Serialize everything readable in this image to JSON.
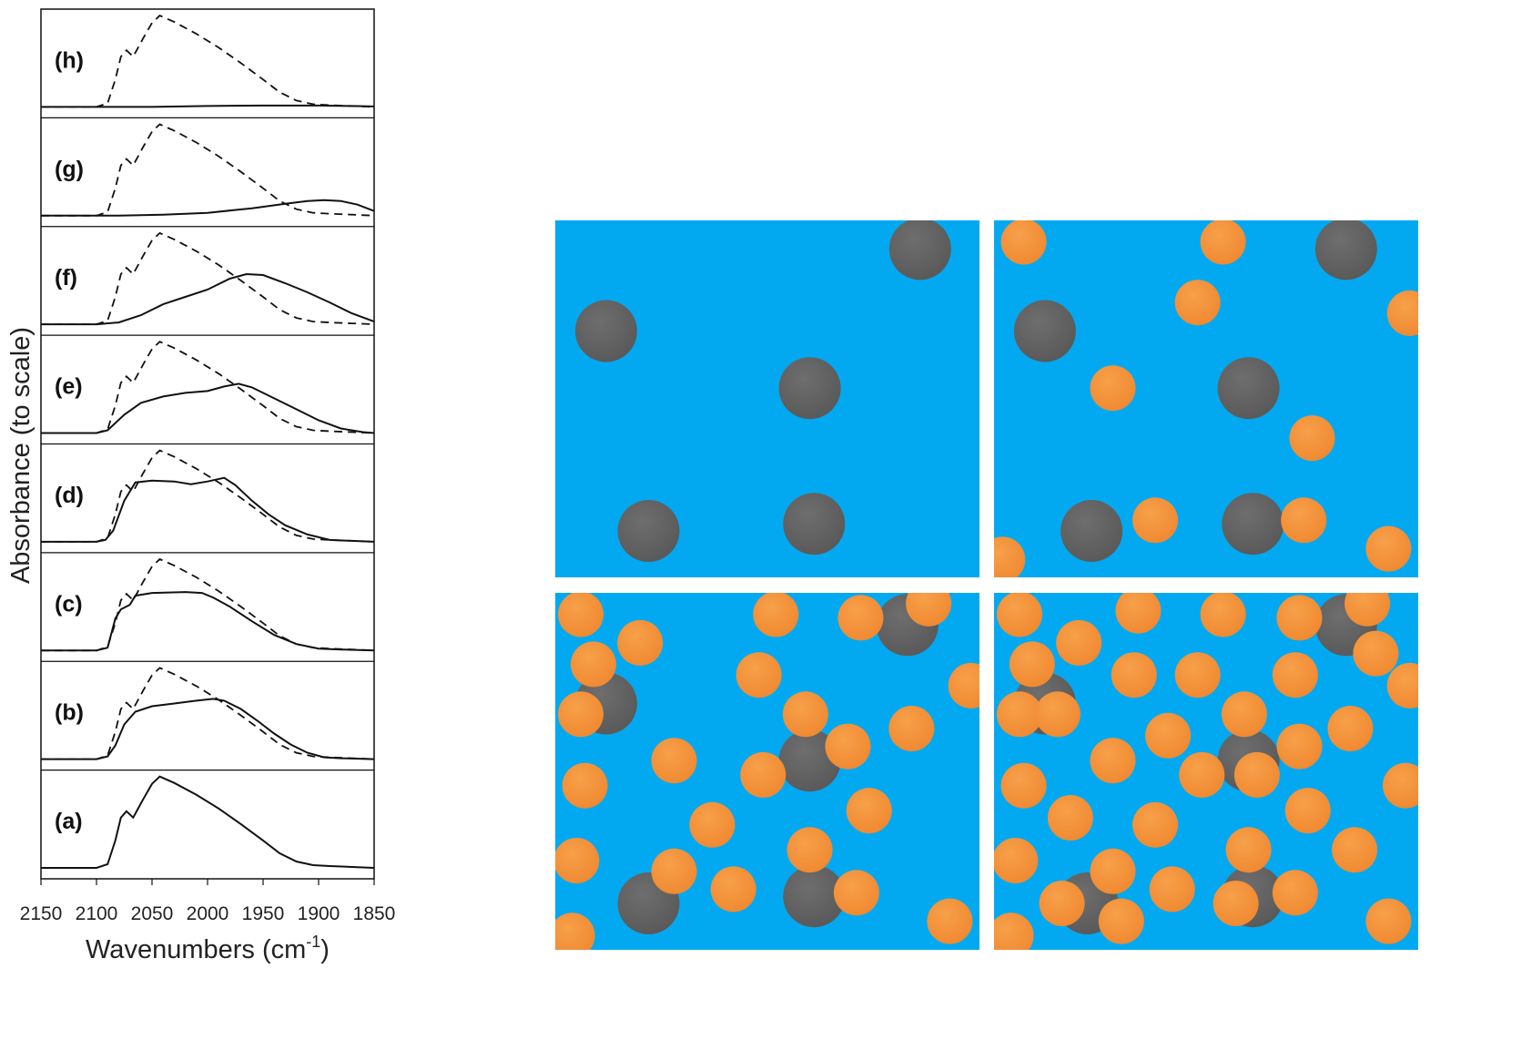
{
  "chart_data": {
    "type": "line",
    "title": "",
    "xlabel": "Wavenumbers (cm",
    "xlabel_sup": "-1",
    "xlabel_tail": ")",
    "ylabel": "Absorbance (to scale)",
    "xlim": [
      2150,
      1850
    ],
    "x_reversed": true,
    "xticks": [
      2150,
      2100,
      2050,
      2000,
      1950,
      1900,
      1850
    ],
    "yticks_shown": false,
    "grid": false,
    "legend": "none",
    "reference_series": {
      "style": "dashed",
      "points": [
        [
          2150,
          0
        ],
        [
          2100,
          0
        ],
        [
          2090,
          0.04
        ],
        [
          2083,
          0.3
        ],
        [
          2078,
          0.55
        ],
        [
          2073,
          0.62
        ],
        [
          2067,
          0.55
        ],
        [
          2058,
          0.75
        ],
        [
          2050,
          0.92
        ],
        [
          2043,
          1.0
        ],
        [
          2030,
          0.93
        ],
        [
          2010,
          0.8
        ],
        [
          1990,
          0.65
        ],
        [
          1970,
          0.48
        ],
        [
          1950,
          0.3
        ],
        [
          1935,
          0.16
        ],
        [
          1920,
          0.07
        ],
        [
          1905,
          0.03
        ],
        [
          1890,
          0.02
        ],
        [
          1870,
          0.01
        ],
        [
          1850,
          0
        ]
      ]
    },
    "traces": [
      {
        "label": "(a)",
        "style": "solid",
        "points": [
          [
            2150,
            0
          ],
          [
            2100,
            0
          ],
          [
            2090,
            0.04
          ],
          [
            2083,
            0.3
          ],
          [
            2078,
            0.55
          ],
          [
            2073,
            0.62
          ],
          [
            2067,
            0.55
          ],
          [
            2058,
            0.75
          ],
          [
            2050,
            0.92
          ],
          [
            2043,
            1.0
          ],
          [
            2030,
            0.93
          ],
          [
            2010,
            0.8
          ],
          [
            1990,
            0.65
          ],
          [
            1970,
            0.48
          ],
          [
            1950,
            0.3
          ],
          [
            1935,
            0.16
          ],
          [
            1920,
            0.07
          ],
          [
            1905,
            0.03
          ],
          [
            1890,
            0.02
          ],
          [
            1870,
            0.01
          ],
          [
            1850,
            0
          ]
        ]
      },
      {
        "label": "(b)",
        "style": "solid",
        "points": [
          [
            2150,
            0
          ],
          [
            2100,
            0
          ],
          [
            2090,
            0.03
          ],
          [
            2083,
            0.15
          ],
          [
            2075,
            0.38
          ],
          [
            2065,
            0.52
          ],
          [
            2050,
            0.58
          ],
          [
            2030,
            0.61
          ],
          [
            2010,
            0.64
          ],
          [
            1995,
            0.66
          ],
          [
            1985,
            0.64
          ],
          [
            1970,
            0.55
          ],
          [
            1955,
            0.42
          ],
          [
            1940,
            0.28
          ],
          [
            1925,
            0.16
          ],
          [
            1910,
            0.07
          ],
          [
            1895,
            0.02
          ],
          [
            1880,
            0.01
          ],
          [
            1850,
            0
          ]
        ]
      },
      {
        "label": "(c)",
        "style": "solid",
        "points": [
          [
            2150,
            0
          ],
          [
            2100,
            0
          ],
          [
            2090,
            0.03
          ],
          [
            2083,
            0.35
          ],
          [
            2078,
            0.45
          ],
          [
            2070,
            0.5
          ],
          [
            2065,
            0.6
          ],
          [
            2050,
            0.63
          ],
          [
            2020,
            0.64
          ],
          [
            2005,
            0.63
          ],
          [
            1995,
            0.58
          ],
          [
            1980,
            0.48
          ],
          [
            1960,
            0.32
          ],
          [
            1940,
            0.17
          ],
          [
            1920,
            0.07
          ],
          [
            1900,
            0.02
          ],
          [
            1880,
            0.01
          ],
          [
            1850,
            0
          ]
        ]
      },
      {
        "label": "(d)",
        "style": "solid",
        "points": [
          [
            2150,
            0
          ],
          [
            2100,
            0
          ],
          [
            2092,
            0.02
          ],
          [
            2085,
            0.12
          ],
          [
            2075,
            0.45
          ],
          [
            2065,
            0.65
          ],
          [
            2050,
            0.67
          ],
          [
            2030,
            0.66
          ],
          [
            2015,
            0.63
          ],
          [
            2000,
            0.66
          ],
          [
            1985,
            0.7
          ],
          [
            1975,
            0.62
          ],
          [
            1960,
            0.45
          ],
          [
            1945,
            0.3
          ],
          [
            1930,
            0.18
          ],
          [
            1910,
            0.08
          ],
          [
            1890,
            0.02
          ],
          [
            1870,
            0.01
          ],
          [
            1850,
            0
          ]
        ]
      },
      {
        "label": "(e)",
        "style": "solid",
        "points": [
          [
            2150,
            0
          ],
          [
            2100,
            0
          ],
          [
            2090,
            0.03
          ],
          [
            2075,
            0.2
          ],
          [
            2060,
            0.33
          ],
          [
            2040,
            0.4
          ],
          [
            2020,
            0.44
          ],
          [
            2000,
            0.46
          ],
          [
            1985,
            0.51
          ],
          [
            1972,
            0.54
          ],
          [
            1960,
            0.5
          ],
          [
            1940,
            0.38
          ],
          [
            1920,
            0.26
          ],
          [
            1900,
            0.14
          ],
          [
            1880,
            0.05
          ],
          [
            1860,
            0.01
          ],
          [
            1850,
            0
          ]
        ]
      },
      {
        "label": "(f)",
        "style": "solid",
        "points": [
          [
            2150,
            0
          ],
          [
            2100,
            0
          ],
          [
            2080,
            0.02
          ],
          [
            2060,
            0.1
          ],
          [
            2040,
            0.22
          ],
          [
            2020,
            0.3
          ],
          [
            2000,
            0.38
          ],
          [
            1980,
            0.5
          ],
          [
            1965,
            0.55
          ],
          [
            1950,
            0.54
          ],
          [
            1930,
            0.45
          ],
          [
            1910,
            0.35
          ],
          [
            1890,
            0.24
          ],
          [
            1870,
            0.12
          ],
          [
            1850,
            0.03
          ]
        ]
      },
      {
        "label": "(g)",
        "style": "solid",
        "points": [
          [
            2150,
            0
          ],
          [
            2080,
            0
          ],
          [
            2040,
            0.01
          ],
          [
            2000,
            0.03
          ],
          [
            1960,
            0.08
          ],
          [
            1930,
            0.13
          ],
          [
            1910,
            0.16
          ],
          [
            1895,
            0.17
          ],
          [
            1880,
            0.16
          ],
          [
            1865,
            0.12
          ],
          [
            1850,
            0.05
          ]
        ]
      },
      {
        "label": "(h)",
        "style": "solid",
        "points": [
          [
            2150,
            0
          ],
          [
            2050,
            0
          ],
          [
            2000,
            0.01
          ],
          [
            1950,
            0.015
          ],
          [
            1900,
            0.015
          ],
          [
            1870,
            0.01
          ],
          [
            1850,
            0.005
          ]
        ]
      }
    ]
  },
  "colors": {
    "panel_background": "#03a9f0",
    "carbon_sphere": "#5a5a5a",
    "metal_sphere": "#f08a32",
    "trace_line": "#111111"
  },
  "illustration": {
    "panels": [
      {
        "name": "panel-1",
        "carbon": [
          [
            0.12,
            0.31
          ],
          [
            0.86,
            0.08
          ],
          [
            0.6,
            0.47
          ],
          [
            0.22,
            0.87
          ],
          [
            0.61,
            0.85
          ]
        ],
        "metal": []
      },
      {
        "name": "panel-2",
        "carbon": [
          [
            0.12,
            0.31
          ],
          [
            0.83,
            0.08
          ],
          [
            0.6,
            0.47
          ],
          [
            0.23,
            0.87
          ],
          [
            0.61,
            0.85
          ]
        ],
        "metal": [
          [
            0.07,
            0.06
          ],
          [
            0.54,
            0.06
          ],
          [
            0.48,
            0.23
          ],
          [
            0.98,
            0.26
          ],
          [
            0.28,
            0.47
          ],
          [
            0.75,
            0.61
          ],
          [
            0.38,
            0.84
          ],
          [
            0.73,
            0.84
          ],
          [
            0.02,
            0.95
          ],
          [
            0.93,
            0.92
          ]
        ]
      },
      {
        "name": "panel-3",
        "carbon": [
          [
            0.83,
            0.09
          ],
          [
            0.12,
            0.31
          ],
          [
            0.6,
            0.47
          ],
          [
            0.22,
            0.87
          ],
          [
            0.61,
            0.85
          ]
        ],
        "metal": [
          [
            0.06,
            0.06
          ],
          [
            0.52,
            0.06
          ],
          [
            0.72,
            0.07
          ],
          [
            0.88,
            0.03
          ],
          [
            0.2,
            0.14
          ],
          [
            0.09,
            0.2
          ],
          [
            0.48,
            0.23
          ],
          [
            0.98,
            0.26
          ],
          [
            0.06,
            0.34
          ],
          [
            0.59,
            0.34
          ],
          [
            0.84,
            0.38
          ],
          [
            0.69,
            0.43
          ],
          [
            0.28,
            0.47
          ],
          [
            0.49,
            0.51
          ],
          [
            0.07,
            0.54
          ],
          [
            0.74,
            0.61
          ],
          [
            0.37,
            0.65
          ],
          [
            0.6,
            0.72
          ],
          [
            0.05,
            0.75
          ],
          [
            0.28,
            0.78
          ],
          [
            0.42,
            0.83
          ],
          [
            0.71,
            0.84
          ],
          [
            0.04,
            0.96
          ],
          [
            0.93,
            0.92
          ]
        ]
      },
      {
        "name": "panel-4",
        "carbon": [
          [
            0.83,
            0.09
          ],
          [
            0.12,
            0.31
          ],
          [
            0.6,
            0.47
          ],
          [
            0.22,
            0.87
          ],
          [
            0.61,
            0.85
          ]
        ],
        "metal": [
          [
            0.06,
            0.06
          ],
          [
            0.34,
            0.05
          ],
          [
            0.54,
            0.06
          ],
          [
            0.72,
            0.07
          ],
          [
            0.88,
            0.03
          ],
          [
            0.2,
            0.14
          ],
          [
            0.9,
            0.17
          ],
          [
            0.09,
            0.2
          ],
          [
            0.33,
            0.23
          ],
          [
            0.48,
            0.23
          ],
          [
            0.71,
            0.23
          ],
          [
            0.98,
            0.26
          ],
          [
            0.06,
            0.34
          ],
          [
            0.15,
            0.34
          ],
          [
            0.59,
            0.34
          ],
          [
            0.84,
            0.38
          ],
          [
            0.41,
            0.4
          ],
          [
            0.72,
            0.43
          ],
          [
            0.28,
            0.47
          ],
          [
            0.49,
            0.51
          ],
          [
            0.62,
            0.51
          ],
          [
            0.07,
            0.54
          ],
          [
            0.97,
            0.54
          ],
          [
            0.18,
            0.63
          ],
          [
            0.74,
            0.61
          ],
          [
            0.38,
            0.65
          ],
          [
            0.85,
            0.72
          ],
          [
            0.6,
            0.72
          ],
          [
            0.05,
            0.75
          ],
          [
            0.28,
            0.78
          ],
          [
            0.42,
            0.83
          ],
          [
            0.71,
            0.84
          ],
          [
            0.16,
            0.87
          ],
          [
            0.57,
            0.87
          ],
          [
            0.04,
            0.96
          ],
          [
            0.3,
            0.92
          ],
          [
            0.93,
            0.92
          ]
        ]
      }
    ]
  }
}
